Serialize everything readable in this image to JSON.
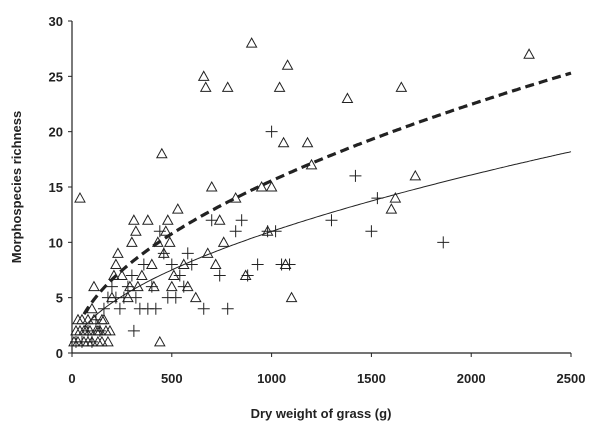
{
  "chart_data": {
    "type": "scatter",
    "xlabel": "Dry weight of grass (g)",
    "ylabel": "Morphospecies richness",
    "xlim": [
      0,
      2500
    ],
    "ylim": [
      0,
      30
    ],
    "xticks": [
      "0",
      "500",
      "1000",
      "1500",
      "2000",
      "2500"
    ],
    "yticks": [
      "0",
      "5",
      "10",
      "15",
      "20",
      "25",
      "30"
    ],
    "grid": false,
    "legend": "none",
    "series": [
      {
        "marker": "triangle",
        "color": "#222222",
        "points": [
          [
            40,
            14
          ],
          [
            10,
            1
          ],
          [
            20,
            2
          ],
          [
            30,
            1
          ],
          [
            40,
            2
          ],
          [
            50,
            3
          ],
          [
            60,
            1
          ],
          [
            70,
            2
          ],
          [
            80,
            1
          ],
          [
            90,
            2
          ],
          [
            100,
            1
          ],
          [
            110,
            3
          ],
          [
            120,
            2
          ],
          [
            130,
            1
          ],
          [
            140,
            2
          ],
          [
            150,
            1
          ],
          [
            160,
            3
          ],
          [
            170,
            2
          ],
          [
            180,
            1
          ],
          [
            190,
            2
          ],
          [
            30,
            3
          ],
          [
            60,
            2
          ],
          [
            80,
            3
          ],
          [
            100,
            4
          ],
          [
            110,
            6
          ],
          [
            130,
            2
          ],
          [
            150,
            3
          ],
          [
            200,
            5
          ],
          [
            210,
            7
          ],
          [
            220,
            8
          ],
          [
            230,
            9
          ],
          [
            250,
            7
          ],
          [
            280,
            5
          ],
          [
            290,
            6
          ],
          [
            300,
            10
          ],
          [
            310,
            12
          ],
          [
            320,
            11
          ],
          [
            330,
            6
          ],
          [
            350,
            7
          ],
          [
            380,
            12
          ],
          [
            400,
            8
          ],
          [
            410,
            6
          ],
          [
            430,
            10
          ],
          [
            440,
            1
          ],
          [
            450,
            18
          ],
          [
            460,
            9
          ],
          [
            470,
            11
          ],
          [
            480,
            12
          ],
          [
            490,
            10
          ],
          [
            500,
            6
          ],
          [
            510,
            7
          ],
          [
            530,
            13
          ],
          [
            560,
            8
          ],
          [
            580,
            6
          ],
          [
            620,
            5
          ],
          [
            660,
            25
          ],
          [
            670,
            24
          ],
          [
            680,
            9
          ],
          [
            700,
            15
          ],
          [
            720,
            8
          ],
          [
            740,
            12
          ],
          [
            760,
            10
          ],
          [
            780,
            24
          ],
          [
            820,
            14
          ],
          [
            870,
            7
          ],
          [
            900,
            28
          ],
          [
            950,
            15
          ],
          [
            980,
            11
          ],
          [
            1000,
            15
          ],
          [
            1040,
            24
          ],
          [
            1060,
            19
          ],
          [
            1070,
            8
          ],
          [
            1080,
            26
          ],
          [
            1100,
            5
          ],
          [
            1180,
            19
          ],
          [
            1200,
            17
          ],
          [
            1380,
            23
          ],
          [
            1600,
            13
          ],
          [
            1620,
            14
          ],
          [
            1650,
            24
          ],
          [
            1720,
            16
          ],
          [
            2290,
            27
          ]
        ]
      },
      {
        "marker": "plus",
        "color": "#222222",
        "points": [
          [
            20,
            1
          ],
          [
            50,
            1
          ],
          [
            80,
            2
          ],
          [
            100,
            1
          ],
          [
            120,
            3
          ],
          [
            140,
            2
          ],
          [
            160,
            4
          ],
          [
            180,
            5
          ],
          [
            200,
            6
          ],
          [
            220,
            5
          ],
          [
            240,
            4
          ],
          [
            260,
            5
          ],
          [
            280,
            6
          ],
          [
            300,
            7
          ],
          [
            310,
            2
          ],
          [
            320,
            5
          ],
          [
            340,
            4
          ],
          [
            360,
            8
          ],
          [
            380,
            4
          ],
          [
            400,
            6
          ],
          [
            420,
            4
          ],
          [
            440,
            11
          ],
          [
            460,
            9
          ],
          [
            480,
            5
          ],
          [
            500,
            8
          ],
          [
            520,
            5
          ],
          [
            540,
            7
          ],
          [
            560,
            6
          ],
          [
            580,
            9
          ],
          [
            600,
            8
          ],
          [
            660,
            4
          ],
          [
            700,
            12
          ],
          [
            740,
            7
          ],
          [
            780,
            4
          ],
          [
            820,
            11
          ],
          [
            850,
            12
          ],
          [
            880,
            7
          ],
          [
            930,
            8
          ],
          [
            980,
            11
          ],
          [
            1000,
            20
          ],
          [
            1020,
            11
          ],
          [
            1050,
            8
          ],
          [
            1090,
            8
          ],
          [
            1300,
            12
          ],
          [
            1420,
            16
          ],
          [
            1500,
            11
          ],
          [
            1530,
            14
          ],
          [
            1860,
            10
          ]
        ]
      }
    ],
    "curves": [
      {
        "style": "dashed",
        "a": 0.4,
        "b": 0.53
      },
      {
        "style": "solid",
        "a": 0.246,
        "b": 0.55
      }
    ]
  }
}
